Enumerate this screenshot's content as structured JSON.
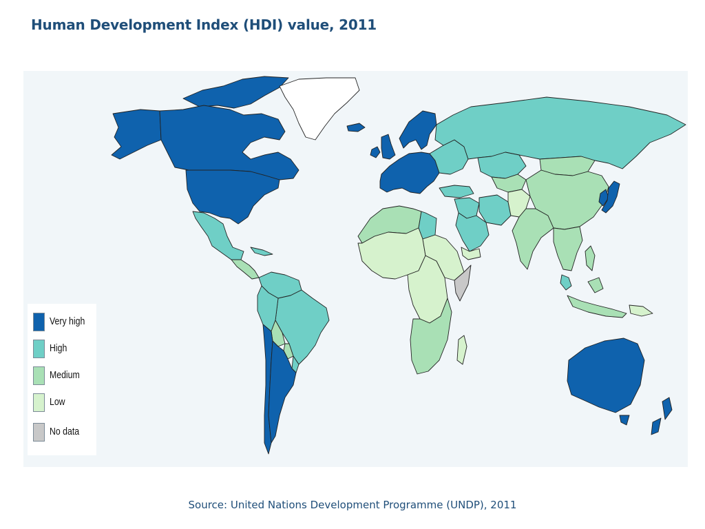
{
  "title": "Human Development Index (HDI) value, 2011",
  "source": "Source: United Nations Development Programme (UNDP), 2011",
  "colors": {
    "very_high": "#0f62ad",
    "high": "#6fcfc6",
    "medium": "#a9e0b5",
    "low": "#d6f2cd",
    "no_data": "#c8c8c8",
    "greenland": "#ffffff",
    "ocean": "#f1f6f9",
    "border": "#222222"
  },
  "legend": {
    "items": [
      {
        "key": "very_high",
        "label": "Very high"
      },
      {
        "key": "high",
        "label": "High"
      },
      {
        "key": "medium",
        "label": "Medium"
      },
      {
        "key": "low",
        "label": "Low"
      },
      {
        "key": "no_data",
        "label": "No data"
      }
    ]
  },
  "regions": [
    {
      "name": "Canada",
      "level": "very_high"
    },
    {
      "name": "United States",
      "level": "very_high"
    },
    {
      "name": "Alaska",
      "level": "very_high"
    },
    {
      "name": "Canadian Arctic Islands",
      "level": "very_high"
    },
    {
      "name": "Greenland",
      "level": "greenland"
    },
    {
      "name": "Iceland",
      "level": "very_high"
    },
    {
      "name": "Mexico",
      "level": "high"
    },
    {
      "name": "Central America",
      "level": "medium"
    },
    {
      "name": "Caribbean",
      "level": "high"
    },
    {
      "name": "Colombia and Venezuela",
      "level": "high"
    },
    {
      "name": "Brazil",
      "level": "high"
    },
    {
      "name": "Peru",
      "level": "high"
    },
    {
      "name": "Bolivia",
      "level": "medium"
    },
    {
      "name": "Paraguay",
      "level": "medium"
    },
    {
      "name": "Uruguay",
      "level": "high"
    },
    {
      "name": "Chile",
      "level": "very_high"
    },
    {
      "name": "Argentina",
      "level": "very_high"
    },
    {
      "name": "Western Europe",
      "level": "very_high"
    },
    {
      "name": "Scandinavia",
      "level": "very_high"
    },
    {
      "name": "Great Britain",
      "level": "very_high"
    },
    {
      "name": "Ireland",
      "level": "very_high"
    },
    {
      "name": "Eastern Europe",
      "level": "high"
    },
    {
      "name": "Russia",
      "level": "high"
    },
    {
      "name": "Kazakhstan",
      "level": "high"
    },
    {
      "name": "Mongolia",
      "level": "medium"
    },
    {
      "name": "Central Asia",
      "level": "medium"
    },
    {
      "name": "Turkey",
      "level": "high"
    },
    {
      "name": "Middle East",
      "level": "high"
    },
    {
      "name": "Arabian Peninsula",
      "level": "high"
    },
    {
      "name": "Yemen",
      "level": "low"
    },
    {
      "name": "Iran",
      "level": "high"
    },
    {
      "name": "Afghanistan and Pakistan",
      "level": "low"
    },
    {
      "name": "India",
      "level": "medium"
    },
    {
      "name": "China",
      "level": "medium"
    },
    {
      "name": "Southeast Asia",
      "level": "medium"
    },
    {
      "name": "Malaysia",
      "level": "high"
    },
    {
      "name": "Indonesia",
      "level": "medium"
    },
    {
      "name": "Papua New Guinea",
      "level": "low"
    },
    {
      "name": "Philippines",
      "level": "medium"
    },
    {
      "name": "Korea",
      "level": "very_high"
    },
    {
      "name": "Japan",
      "level": "very_high"
    },
    {
      "name": "North Africa",
      "level": "medium"
    },
    {
      "name": "Libya",
      "level": "high"
    },
    {
      "name": "West Africa",
      "level": "low"
    },
    {
      "name": "Central Africa",
      "level": "low"
    },
    {
      "name": "East Africa",
      "level": "low"
    },
    {
      "name": "Somalia",
      "level": "no_data"
    },
    {
      "name": "Southern Africa",
      "level": "medium"
    },
    {
      "name": "Madagascar",
      "level": "low"
    },
    {
      "name": "Australia",
      "level": "very_high"
    },
    {
      "name": "Tasmania",
      "level": "very_high"
    },
    {
      "name": "New Zealand",
      "level": "very_high"
    }
  ]
}
